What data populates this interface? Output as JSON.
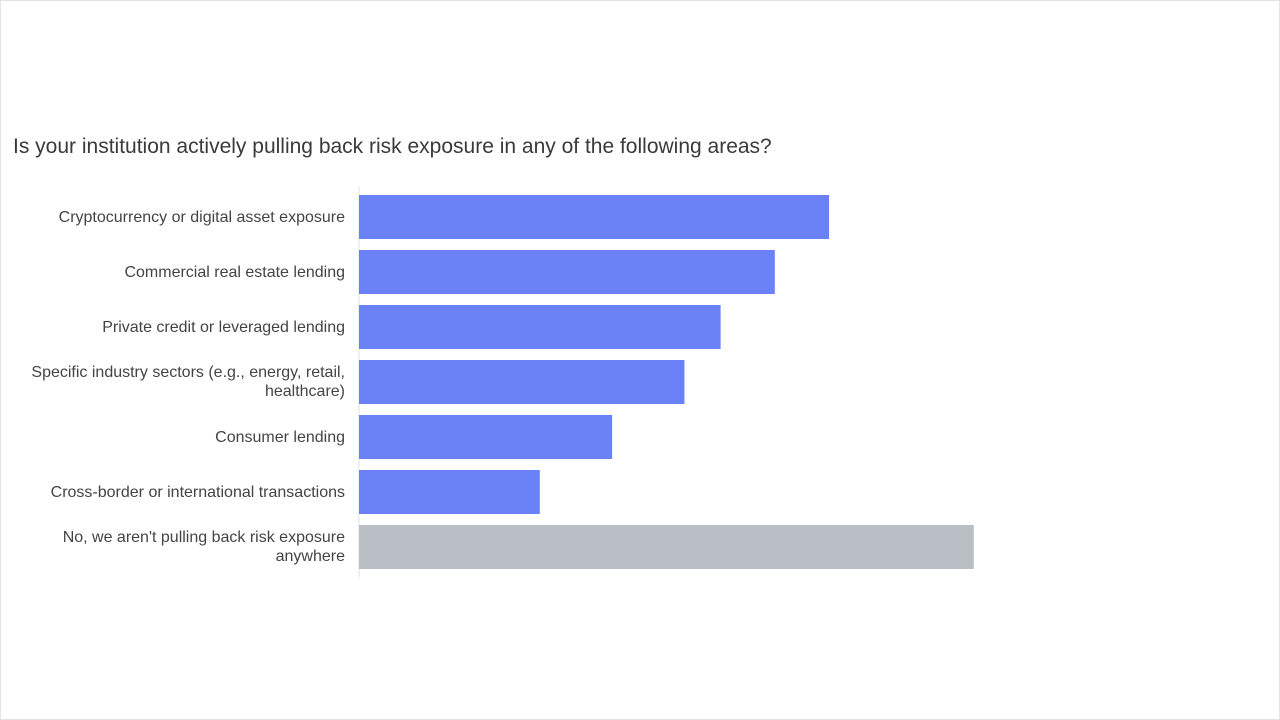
{
  "chart_data": {
    "type": "hbar",
    "title": "Is your institution actively pulling back risk exposure in any of the following areas?",
    "categories": [
      "Cryptocurrency or digital asset exposure",
      "Commercial real estate lending",
      "Private credit or leveraged lending",
      "Specific industry sectors (e.g., energy, retail, healthcare)",
      "Consumer lending",
      "Cross-border or international transactions",
      "No, we aren't pulling back risk exposure anywhere"
    ],
    "values": [
      26,
      23,
      20,
      18,
      14,
      10,
      34
    ],
    "colors": [
      "#6b82f7",
      "#6b82f7",
      "#6b82f7",
      "#6b82f7",
      "#6b82f7",
      "#6b82f7",
      "#b9bec4"
    ],
    "xlim": [
      0,
      50
    ]
  }
}
